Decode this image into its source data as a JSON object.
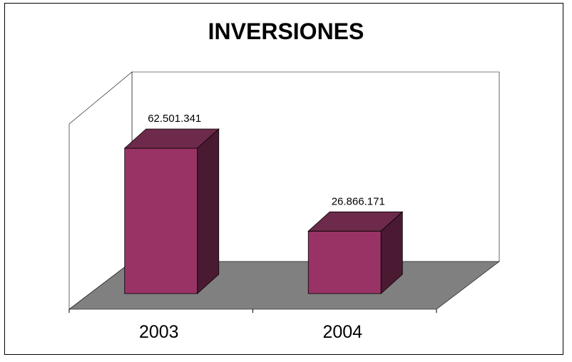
{
  "chart_data": {
    "type": "bar",
    "title": "INVERSIONES",
    "categories": [
      "2003",
      "2004"
    ],
    "values": [
      62501341,
      26866171
    ],
    "data_labels": [
      "62.501.341",
      "26.866.171"
    ],
    "xlabel": "",
    "ylabel": "",
    "ylim": [
      0,
      70000000
    ],
    "grid": false,
    "legend": "none",
    "three_d": true,
    "colors": {
      "bar_front": "#993366",
      "bar_top": "#6e2a4a",
      "bar_side": "#4a1a33",
      "floor": "#808080",
      "walls": "#ffffff"
    }
  }
}
